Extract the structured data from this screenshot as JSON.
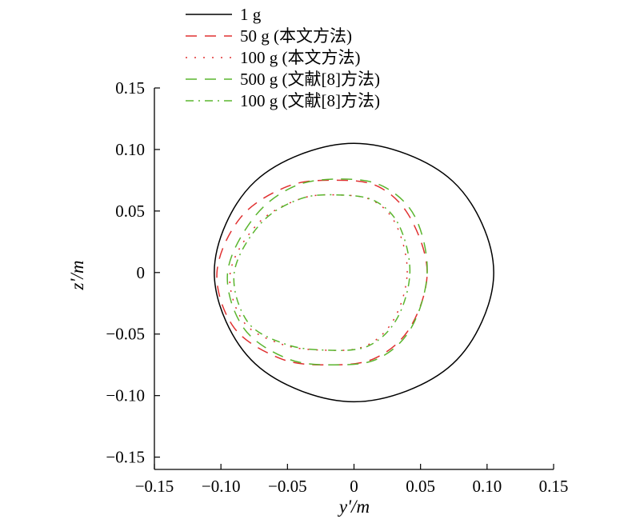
{
  "chart_data": {
    "type": "line",
    "xlabel": "y'/m",
    "ylabel": "z'/m",
    "xlim": [
      -0.15,
      0.15
    ],
    "ylim": [
      -0.16,
      0.15
    ],
    "xticks": [
      {
        "value": -0.15,
        "label": "−0.15"
      },
      {
        "value": -0.1,
        "label": "−0.10"
      },
      {
        "value": -0.05,
        "label": "−0.05"
      },
      {
        "value": 0,
        "label": "0"
      },
      {
        "value": 0.05,
        "label": "0.05"
      },
      {
        "value": 0.1,
        "label": "0.10"
      },
      {
        "value": 0.15,
        "label": "0.15"
      }
    ],
    "yticks": [
      {
        "value": 0.15,
        "label": "0.15"
      },
      {
        "value": 0.1,
        "label": "0.10"
      },
      {
        "value": 0.05,
        "label": "0.05"
      },
      {
        "value": 0,
        "label": "0"
      },
      {
        "value": -0.05,
        "label": "−0.05"
      },
      {
        "value": -0.1,
        "label": "−0.10"
      },
      {
        "value": -0.15,
        "label": "−0.15"
      }
    ],
    "grid": false,
    "legend": "top-left-outside",
    "series": [
      {
        "name": "1 g",
        "color": "#000000",
        "dash": "solid",
        "x": [
          0.105,
          0.0742,
          0,
          -0.0742,
          -0.105,
          -0.0742,
          0,
          0.0742,
          0.105
        ],
        "y": [
          0,
          0.0742,
          0.105,
          0.0742,
          0,
          -0.0742,
          -0.105,
          -0.0742,
          0
        ]
      },
      {
        "name": "50 g (本文方法)",
        "color": "#e03030",
        "dash": "long-dash",
        "x": [
          0.055,
          0.042,
          0.018,
          -0.015,
          -0.05,
          -0.085,
          -0.103,
          -0.09,
          -0.055,
          -0.02,
          0.015,
          0.042,
          0.055
        ],
        "y": [
          0,
          0.045,
          0.07,
          0.075,
          0.07,
          0.045,
          0,
          -0.045,
          -0.07,
          -0.075,
          -0.07,
          -0.045,
          0
        ]
      },
      {
        "name": "100 g (本文方法)",
        "color": "#e03030",
        "dash": "dotted",
        "x": [
          0.04,
          0.032,
          0.015,
          -0.01,
          -0.04,
          -0.072,
          -0.093,
          -0.083,
          -0.055,
          -0.025,
          0.008,
          0.03,
          0.04
        ],
        "y": [
          0,
          0.038,
          0.058,
          0.063,
          0.06,
          0.04,
          0,
          -0.04,
          -0.058,
          -0.063,
          -0.06,
          -0.038,
          0
        ]
      },
      {
        "name": "500 g (文献[8]方法)",
        "color": "#5ab52e",
        "dash": "long-dash",
        "x": [
          0.055,
          0.046,
          0.022,
          -0.01,
          -0.045,
          -0.075,
          -0.095,
          -0.083,
          -0.05,
          -0.015,
          0.018,
          0.043,
          0.055
        ],
        "y": [
          0,
          0.045,
          0.07,
          0.076,
          0.07,
          0.045,
          0,
          -0.045,
          -0.07,
          -0.075,
          -0.07,
          -0.045,
          0
        ]
      },
      {
        "name": "100 g (文献[8]方法)",
        "color": "#5ab52e",
        "dash": "dash-dot",
        "x": [
          0.042,
          0.034,
          0.016,
          -0.01,
          -0.04,
          -0.07,
          -0.09,
          -0.08,
          -0.052,
          -0.022,
          0.01,
          0.032,
          0.042
        ],
        "y": [
          0,
          0.038,
          0.058,
          0.063,
          0.06,
          0.04,
          0,
          -0.04,
          -0.058,
          -0.063,
          -0.06,
          -0.038,
          0
        ]
      }
    ]
  }
}
